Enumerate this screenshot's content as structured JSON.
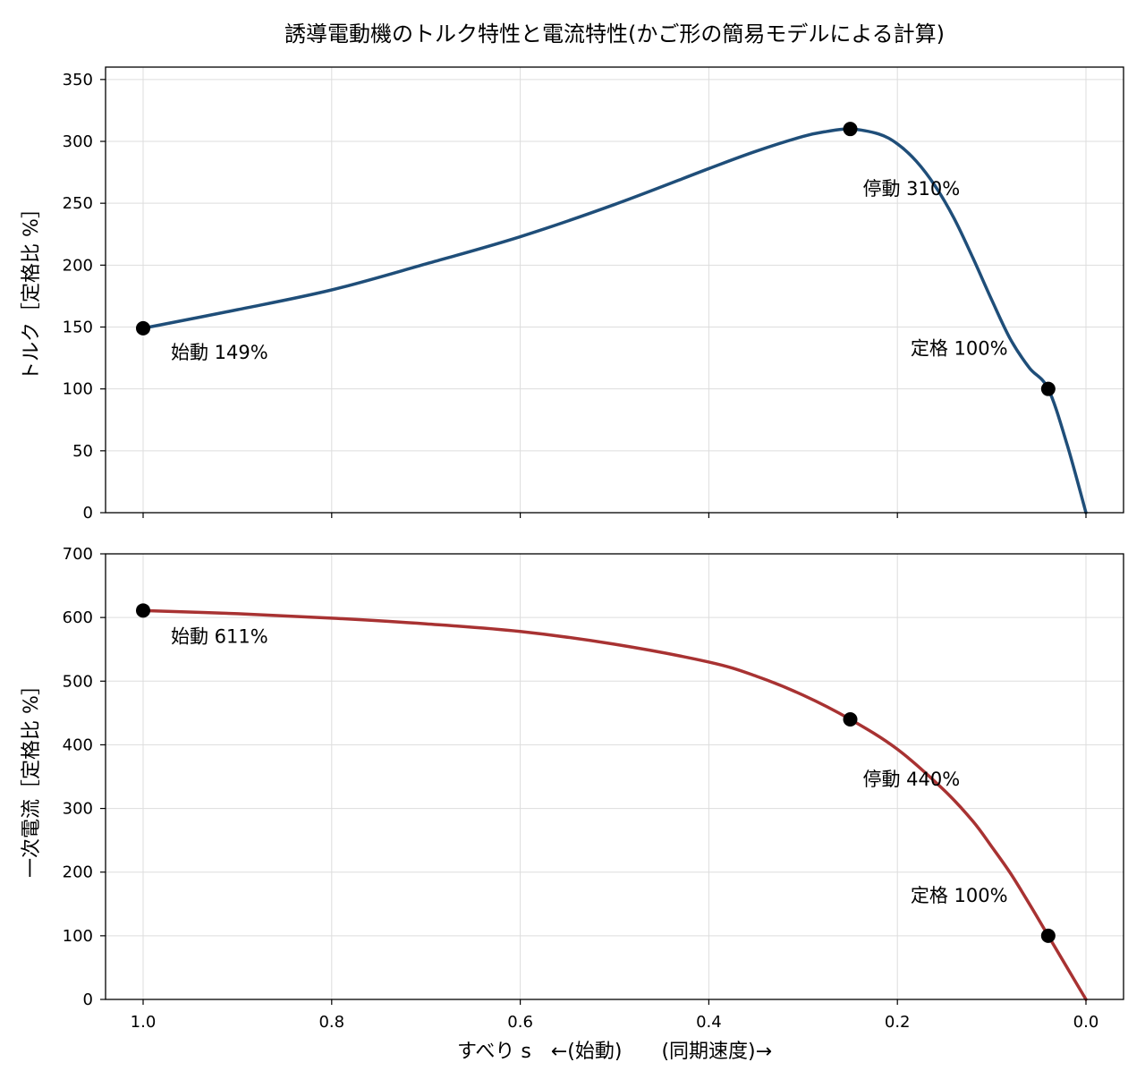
{
  "chart_data": {
    "type": "line",
    "title": "誘導電動機のトルク特性と電流特性(かご形の簡易モデルによる計算)",
    "xlabel": "すべり s　←(始動)　　(同期速度)→",
    "xlim": [
      1.0,
      0.0
    ],
    "xticks": [
      1.0,
      0.8,
      0.6,
      0.4,
      0.2,
      0.0
    ],
    "xtick_labels": [
      "1.0",
      "0.8",
      "0.6",
      "0.4",
      "0.2",
      "0.0"
    ],
    "grid": true,
    "panels": [
      {
        "id": "torque",
        "ylabel": "トルク［定格比 %］",
        "ylim": [
          0,
          360
        ],
        "yticks": [
          0,
          50,
          100,
          150,
          200,
          250,
          300,
          350
        ],
        "color": "#1f4e79",
        "series": {
          "x": [
            1.0,
            0.9,
            0.8,
            0.7,
            0.6,
            0.5,
            0.4,
            0.35,
            0.3,
            0.275,
            0.25,
            0.22,
            0.2,
            0.18,
            0.16,
            0.14,
            0.12,
            0.1,
            0.08,
            0.06,
            0.04,
            0.02,
            0.0
          ],
          "values": [
            149,
            164,
            180,
            201,
            223,
            249,
            278,
            292,
            304,
            308,
            310,
            306,
            298,
            284,
            264,
            238,
            206,
            172,
            140,
            117,
            100,
            55,
            0
          ]
        },
        "markers": [
          {
            "x": 1.0,
            "y": 149,
            "label": "始動 149%"
          },
          {
            "x": 0.25,
            "y": 310,
            "label": "停動 310%"
          },
          {
            "x": 0.04,
            "y": 100,
            "label": "定格 100%"
          }
        ]
      },
      {
        "id": "current",
        "ylabel": "一次電流［定格比 %］",
        "ylim": [
          0,
          700
        ],
        "yticks": [
          0,
          100,
          200,
          300,
          400,
          500,
          600,
          700
        ],
        "color": "#a83232",
        "series": {
          "x": [
            1.0,
            0.9,
            0.8,
            0.7,
            0.6,
            0.5,
            0.4,
            0.35,
            0.3,
            0.25,
            0.2,
            0.15,
            0.12,
            0.1,
            0.08,
            0.06,
            0.04,
            0.02,
            0.0
          ],
          "values": [
            611,
            606,
            599,
            590,
            578,
            558,
            530,
            508,
            478,
            440,
            393,
            328,
            280,
            240,
            198,
            150,
            100,
            50,
            0
          ]
        },
        "markers": [
          {
            "x": 1.0,
            "y": 611,
            "label": "始動 611%"
          },
          {
            "x": 0.25,
            "y": 440,
            "label": "停動 440%"
          },
          {
            "x": 0.04,
            "y": 100,
            "label": "定格 100%"
          }
        ]
      }
    ]
  }
}
